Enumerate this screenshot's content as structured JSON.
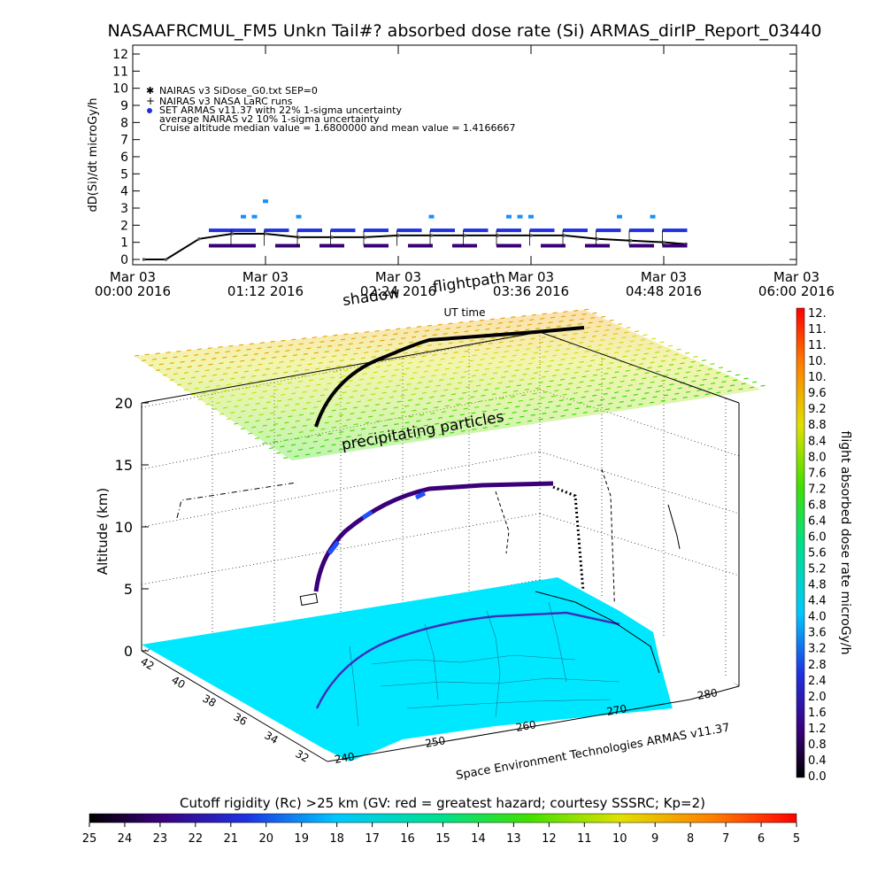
{
  "title": "NASAAFRCMUL_FM5 Unkn Tail#? absorbed dose rate (Si) ARMAS_dirIP_Report_03440",
  "chart_data": [
    {
      "type": "scatter",
      "name": "dose-rate-timeseries",
      "ylabel": "dD(Si)/dt microGy/h",
      "xlabel": "UT time",
      "ylim": [
        0,
        12
      ],
      "yticks": [
        "0",
        "1",
        "2",
        "3",
        "4",
        "5",
        "6",
        "7",
        "8",
        "9",
        "10",
        "11",
        "12"
      ],
      "xticks": [
        {
          "line1": "Mar 03",
          "line2": "00:00 2016"
        },
        {
          "line1": "Mar 03",
          "line2": "01:12 2016"
        },
        {
          "line1": "Mar 03",
          "line2": "02:24 2016"
        },
        {
          "line1": "Mar 03",
          "line2": "03:36 2016"
        },
        {
          "line1": "Mar 03",
          "line2": "04:48 2016"
        },
        {
          "line1": "Mar 03",
          "line2": "06:00 2016"
        }
      ],
      "xlim_hours": [
        0,
        6
      ],
      "legend": [
        {
          "symbol": "asterisk",
          "label": "NAIRAS v3 SiDose_G0.txt SEP=0"
        },
        {
          "symbol": "plus",
          "label": "NAIRAS v3 NASA LaRC runs"
        },
        {
          "symbol": "dot",
          "label": "SET ARMAS v11.37 with 22% 1-sigma uncertainty"
        },
        {
          "symbol": "none",
          "label": "average NAIRAS v2 10% 1-sigma uncertainty"
        },
        {
          "symbol": "none",
          "label": "Cruise altitude median value = 1.6800000 and mean value = 1.4166667"
        }
      ],
      "series": [
        {
          "name": "NAIRAS v3",
          "x_hours": [
            0.1,
            0.3,
            0.6,
            0.9,
            1.2,
            1.5,
            1.8,
            2.1,
            2.4,
            2.7,
            3.0,
            3.3,
            3.6,
            3.9,
            4.2,
            4.5,
            4.8,
            5.0
          ],
          "values": [
            0.0,
            0.0,
            1.2,
            1.5,
            1.5,
            1.3,
            1.3,
            1.3,
            1.4,
            1.4,
            1.4,
            1.4,
            1.4,
            1.4,
            1.2,
            1.1,
            1.0,
            0.9
          ]
        },
        {
          "name": "ARMAS low",
          "x_hours": [
            0.8,
            1.0,
            1.4,
            1.8,
            2.2,
            2.6,
            3.0,
            3.4,
            3.8,
            4.2,
            4.6,
            4.9
          ],
          "values": [
            0.8,
            0.8,
            0.8,
            0.8,
            0.8,
            0.8,
            0.8,
            0.8,
            0.8,
            0.8,
            0.8,
            0.8
          ]
        },
        {
          "name": "ARMAS mid",
          "x_hours": [
            0.8,
            1.0,
            1.3,
            1.6,
            1.9,
            2.2,
            2.5,
            2.8,
            3.1,
            3.4,
            3.7,
            4.0,
            4.3,
            4.6,
            4.9
          ],
          "values": [
            1.7,
            1.7,
            1.7,
            1.7,
            1.7,
            1.7,
            1.7,
            1.7,
            1.7,
            1.7,
            1.7,
            1.7,
            1.7,
            1.7,
            1.7
          ]
        },
        {
          "name": "ARMAS high",
          "x_hours": [
            1.0,
            1.1,
            1.2,
            1.5,
            2.7,
            3.4,
            3.5,
            3.6,
            4.4,
            4.7
          ],
          "values": [
            2.5,
            2.5,
            3.4,
            2.5,
            2.5,
            2.5,
            2.5,
            2.5,
            2.5,
            2.5
          ]
        }
      ]
    },
    {
      "type": "scatter",
      "name": "3d-flightpath",
      "annotations": [
        "shadow",
        "flightpath",
        "precipitating particles"
      ],
      "xlabel": "Space Environment Technologies ARMAS v11.37",
      "zlabel": "Altitude (km)",
      "zticks": [
        "0",
        "5",
        "10",
        "15",
        "20"
      ],
      "lat_ticks": [
        "32",
        "34",
        "36",
        "38",
        "40",
        "42"
      ],
      "lon_ticks": [
        "240",
        "250",
        "260",
        "270",
        "280"
      ],
      "color_scale": {
        "label": "flight absorbed dose rate microGy/h",
        "ticks": [
          "0.0",
          "0.4",
          "0.8",
          "1.2",
          "1.6",
          "2.0",
          "2.4",
          "2.8",
          "3.2",
          "3.6",
          "4.0",
          "4.4",
          "4.8",
          "5.2",
          "5.6",
          "6.0",
          "6.4",
          "6.8",
          "7.2",
          "7.6",
          "8.0",
          "8.4",
          "8.8",
          "9.2",
          "9.6",
          "10.",
          "10.",
          "11.",
          "11.",
          "12."
        ]
      },
      "cutoff_bar": {
        "title": "Cutoff rigidity (Rc) >25 km (GV: red = greatest hazard; courtesy SSSRC; Kp=2)",
        "ticks": [
          "25",
          "24",
          "23",
          "22",
          "21",
          "20",
          "19",
          "18",
          "17",
          "16",
          "15",
          "14",
          "13",
          "12",
          "11",
          "10",
          "9",
          "8",
          "7",
          "6",
          "5"
        ]
      }
    }
  ]
}
